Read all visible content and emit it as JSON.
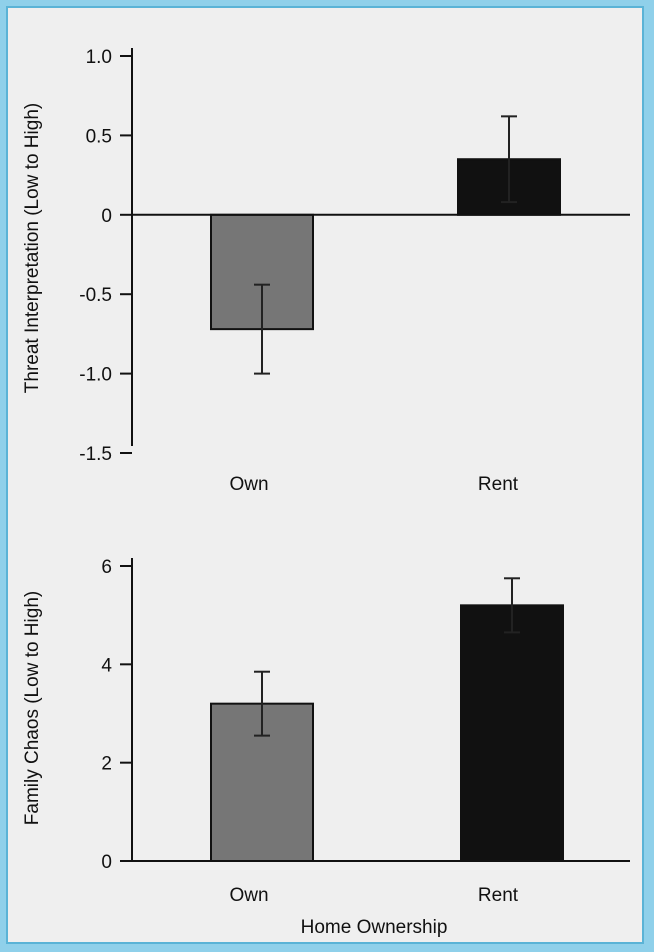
{
  "chart_data": [
    {
      "type": "bar",
      "categories": [
        "Own",
        "Rent"
      ],
      "values": [
        -0.72,
        0.35
      ],
      "errors": [
        0.28,
        0.27
      ],
      "ylabel": "Threat Interpretation (Low to High)",
      "xlabel": "",
      "ylim": [
        -1.5,
        1.0
      ],
      "yticks": [
        "1.0",
        "0.5",
        "0",
        "-0.5",
        "-1.0",
        "-1.5"
      ],
      "ytick_values": [
        1.0,
        0.5,
        0,
        -0.5,
        -1.0,
        -1.5
      ],
      "bar_colors": [
        "#767676",
        "#111111"
      ]
    },
    {
      "type": "bar",
      "categories": [
        "Own",
        "Rent"
      ],
      "values": [
        3.2,
        5.2
      ],
      "errors": [
        0.65,
        0.55
      ],
      "ylabel": "Family Chaos (Low to High)",
      "xlabel": "Home Ownership",
      "ylim": [
        0,
        6
      ],
      "yticks": [
        "6",
        "4",
        "2",
        "0"
      ],
      "ytick_values": [
        6,
        4,
        2,
        0
      ],
      "bar_colors": [
        "#767676",
        "#111111"
      ]
    }
  ]
}
